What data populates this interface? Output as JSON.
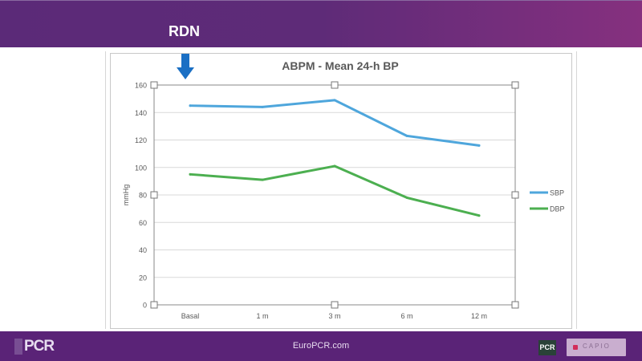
{
  "slide": {
    "title": "RDN",
    "footer_url": "EuroPCR.com",
    "logo_left": "PCR",
    "logo_right": "PCR",
    "logo_right2": "CAPIO"
  },
  "colors": {
    "header": "#5e2b78",
    "footer": "#5a2377",
    "sbp": "#4ea6dc",
    "dbp": "#4caf50",
    "arrow": "#1a6fc4"
  },
  "marker": {
    "icon": "down-arrow-icon",
    "points_to": "Basal"
  },
  "chart_data": {
    "type": "line",
    "title": "ABPM - Mean 24-h BP",
    "xlabel": "",
    "ylabel": "mmHg",
    "categories": [
      "Basal",
      "1 m",
      "3 m",
      "6 m",
      "12 m"
    ],
    "ylim": [
      0,
      160
    ],
    "yticks": [
      0,
      20,
      40,
      60,
      80,
      100,
      120,
      140,
      160
    ],
    "ytick_labels": [
      "0",
      "20",
      "40",
      "60",
      "80",
      "100",
      "120",
      "140",
      "160"
    ],
    "grid": true,
    "legend": "right",
    "series": [
      {
        "name": "SBP",
        "values": [
          145,
          144,
          149,
          123,
          116
        ],
        "color": "#4ea6dc"
      },
      {
        "name": "DBP",
        "values": [
          95,
          91,
          101,
          78,
          65
        ],
        "color": "#4caf50"
      }
    ]
  }
}
